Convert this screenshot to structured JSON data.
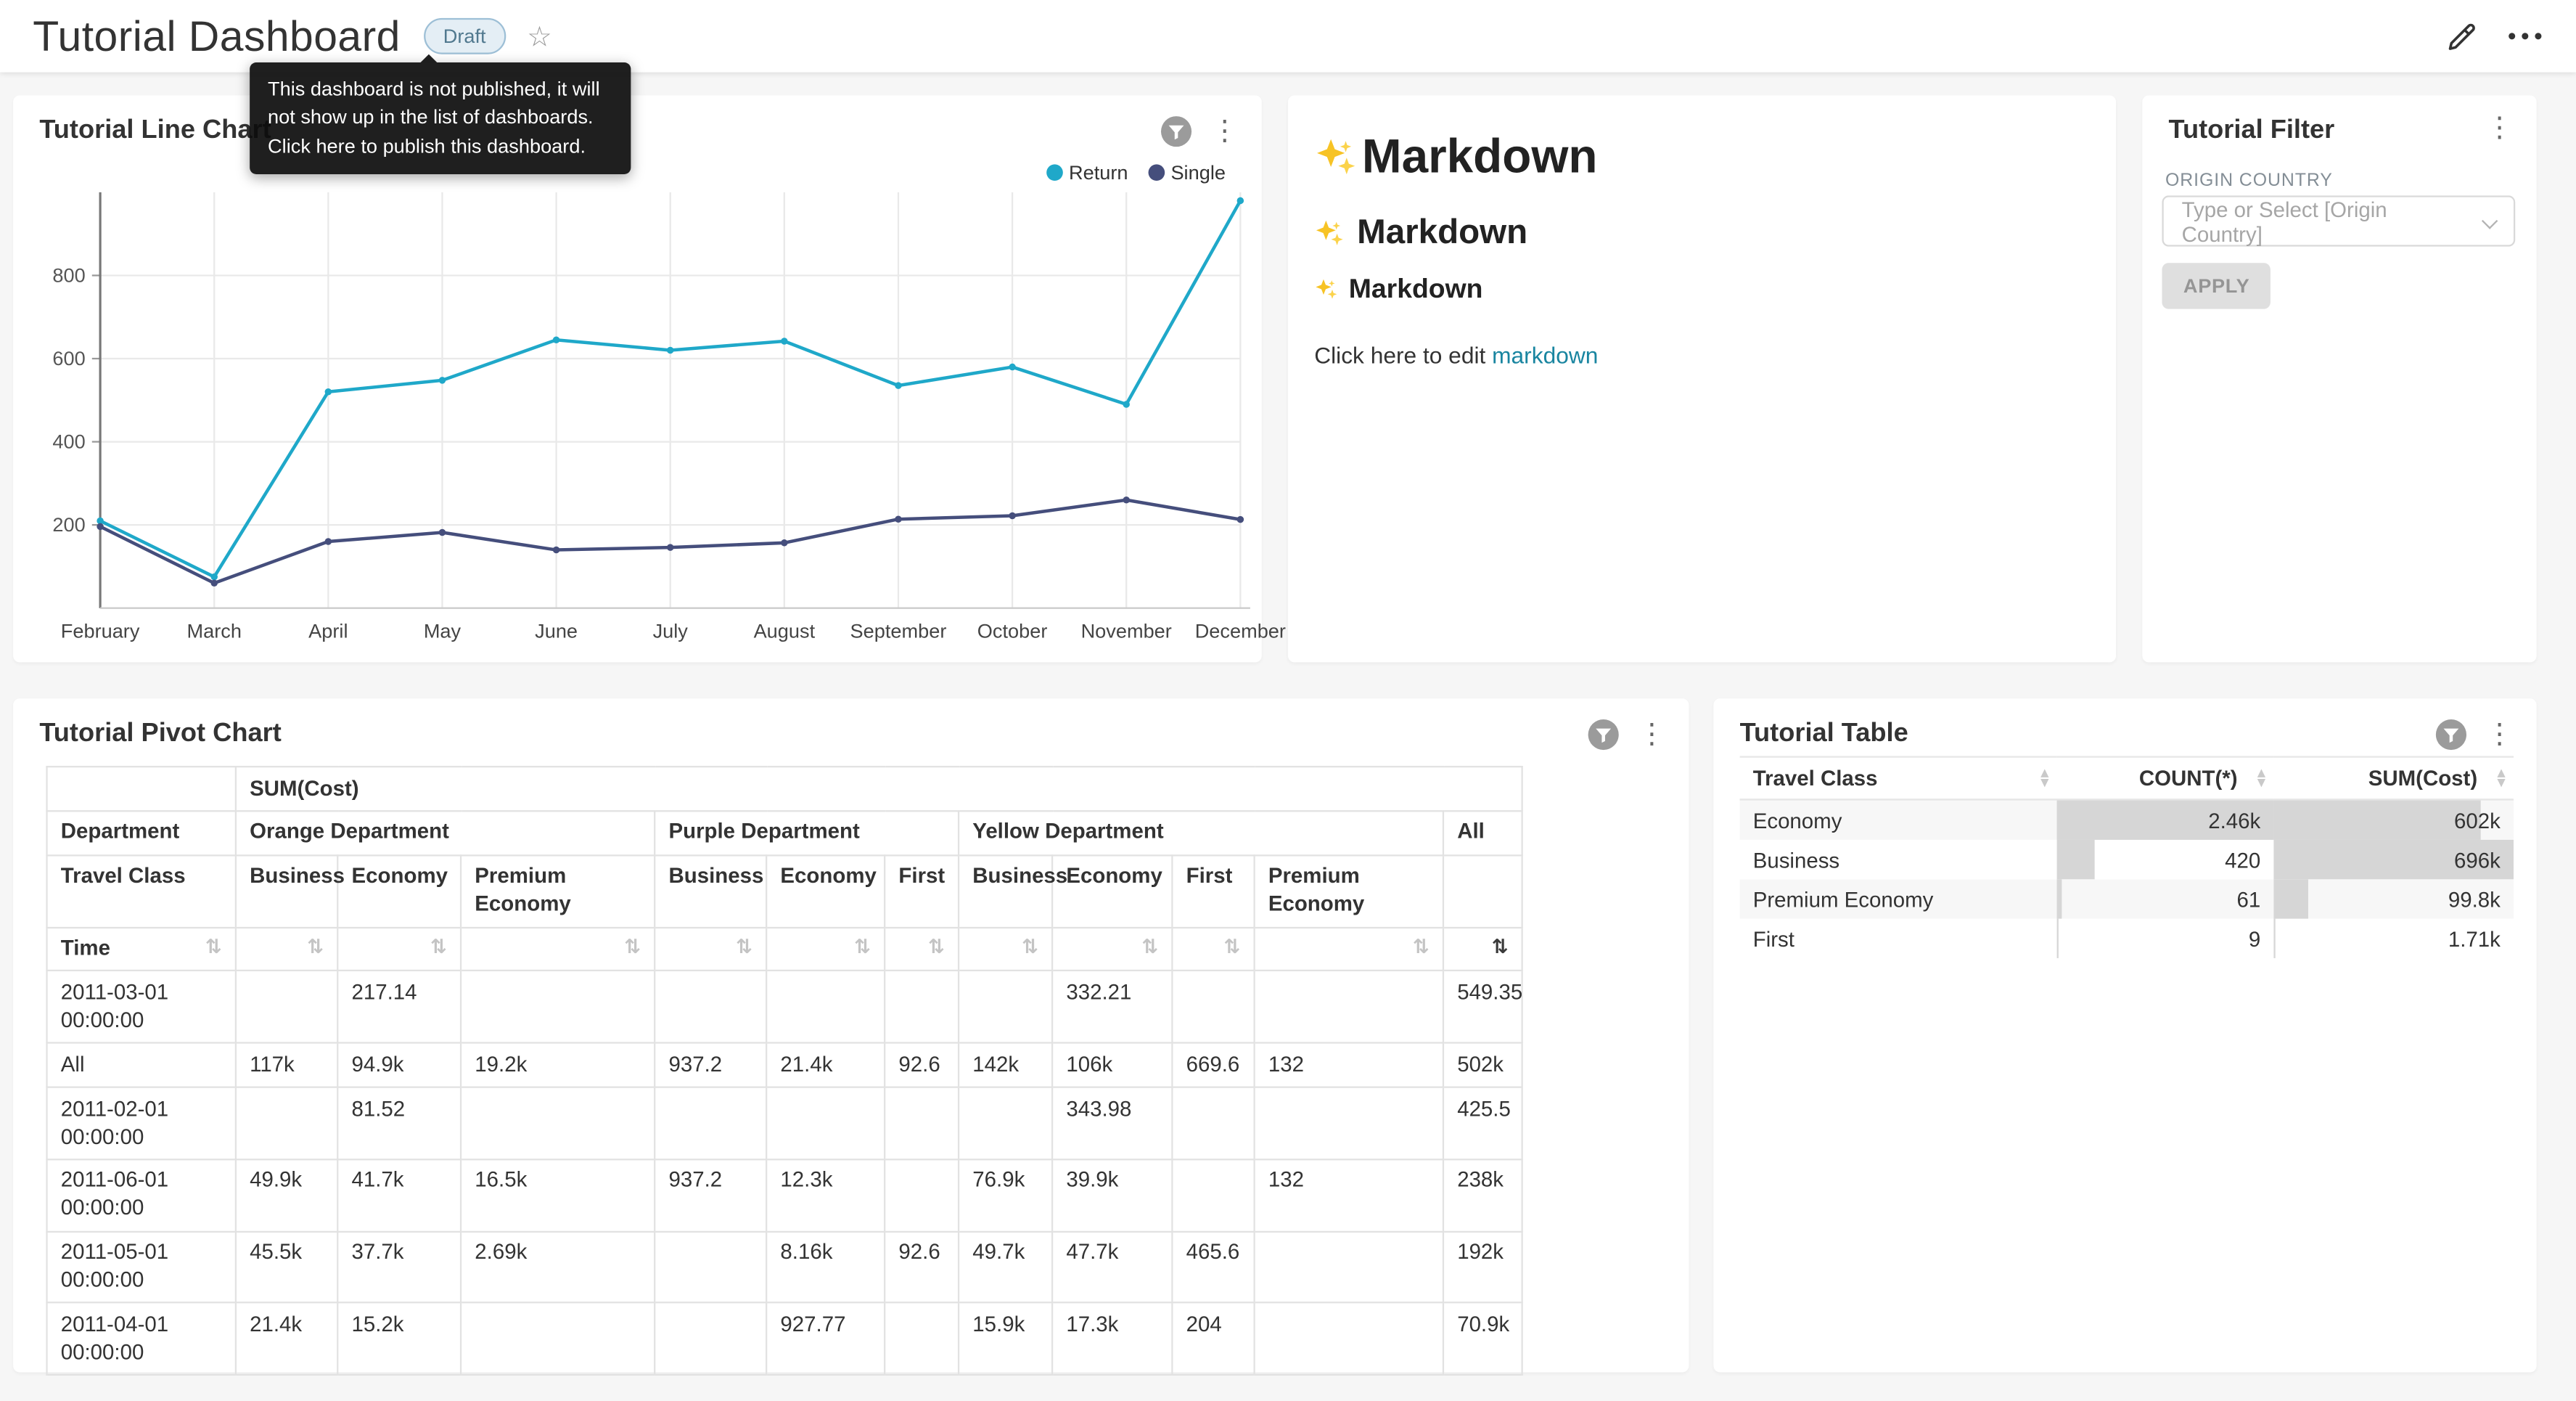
{
  "header": {
    "title": "Tutorial Dashboard",
    "badge_label": "Draft",
    "tooltip_text": "This dashboard is not published, it will not show up in the list of dashboards. Click here to publish this dashboard."
  },
  "cards": {
    "line_chart": {
      "title": "Tutorial Line Chart"
    },
    "markdown": {
      "sparkle_emoji": "✨",
      "h1": "Markdown",
      "h2": "Markdown",
      "h3": "Markdown",
      "edit_prompt": "Click here to edit ",
      "edit_link": "markdown"
    },
    "filter": {
      "title": "Tutorial Filter",
      "field_label": "ORIGIN COUNTRY",
      "select_placeholder": "Type or Select [Origin Country]",
      "apply_label": "APPLY"
    },
    "pivot": {
      "title": "Tutorial Pivot Chart"
    },
    "table": {
      "title": "Tutorial Table"
    }
  },
  "colors": {
    "series_return": "#1fa8c9",
    "series_single": "#454e7c",
    "link": "#1985a0",
    "table_bar": "#d6d6d6"
  },
  "chart_data": [
    {
      "id": "tutorial-line-chart",
      "type": "line",
      "title": "Tutorial Line Chart",
      "x": [
        "February",
        "March",
        "April",
        "May",
        "June",
        "July",
        "August",
        "September",
        "October",
        "November",
        "December"
      ],
      "yticks": [
        200,
        400,
        600,
        800
      ],
      "ylim": [
        0,
        1000
      ],
      "grid": true,
      "legend_position": "top-right",
      "series": [
        {
          "name": "Return",
          "color": "#1fa8c9",
          "values": [
            210,
            75,
            520,
            548,
            645,
            620,
            642,
            535,
            580,
            490,
            980
          ]
        },
        {
          "name": "Single",
          "color": "#454e7c",
          "values": [
            196,
            60,
            160,
            182,
            140,
            146,
            157,
            214,
            222,
            260,
            213
          ]
        }
      ]
    },
    {
      "id": "tutorial-pivot-chart",
      "type": "table",
      "title": "Tutorial Pivot Chart",
      "metric_header": "SUM(Cost)",
      "col_dimension": "Department",
      "sub_dimension": "Travel Class",
      "row_dimension": "Time",
      "sorted_by": "All",
      "groups": [
        {
          "name": "Orange Department",
          "cols": [
            "Business",
            "Economy",
            "Premium Economy"
          ]
        },
        {
          "name": "Purple Department",
          "cols": [
            "Business",
            "Economy",
            "First"
          ]
        },
        {
          "name": "Yellow Department",
          "cols": [
            "Business",
            "Economy",
            "First",
            "Premium Economy"
          ]
        },
        {
          "name": "All",
          "cols": [
            ""
          ]
        }
      ],
      "rows": [
        {
          "label": "2011-03-01 00:00:00",
          "values": [
            "",
            "217.14",
            "",
            "",
            "",
            "",
            "",
            "332.21",
            "",
            "",
            "549.35"
          ]
        },
        {
          "label": "All",
          "values": [
            "117k",
            "94.9k",
            "19.2k",
            "937.2",
            "21.4k",
            "92.6",
            "142k",
            "106k",
            "669.6",
            "132",
            "502k"
          ]
        },
        {
          "label": "2011-02-01 00:00:00",
          "values": [
            "",
            "81.52",
            "",
            "",
            "",
            "",
            "",
            "343.98",
            "",
            "",
            "425.5"
          ]
        },
        {
          "label": "2011-06-01 00:00:00",
          "values": [
            "49.9k",
            "41.7k",
            "16.5k",
            "937.2",
            "12.3k",
            "",
            "76.9k",
            "39.9k",
            "",
            "132",
            "238k"
          ]
        },
        {
          "label": "2011-05-01 00:00:00",
          "values": [
            "45.5k",
            "37.7k",
            "2.69k",
            "",
            "8.16k",
            "92.6",
            "49.7k",
            "47.7k",
            "465.6",
            "",
            "192k"
          ]
        },
        {
          "label": "2011-04-01 00:00:00",
          "values": [
            "21.4k",
            "15.2k",
            "",
            "",
            "927.77",
            "",
            "15.9k",
            "17.3k",
            "204",
            "",
            "70.9k"
          ]
        }
      ]
    },
    {
      "id": "tutorial-table",
      "type": "table",
      "title": "Tutorial Table",
      "columns": [
        "Travel Class",
        "COUNT(*)",
        "SUM(Cost)"
      ],
      "rows": [
        {
          "travel_class": "Economy",
          "count": "2.46k",
          "count_pct": 100,
          "sum": "602k",
          "sum_pct": 86.5
        },
        {
          "travel_class": "Business",
          "count": "420",
          "count_pct": 17,
          "sum": "696k",
          "sum_pct": 100
        },
        {
          "travel_class": "Premium Economy",
          "count": "61",
          "count_pct": 2.5,
          "sum": "99.8k",
          "sum_pct": 14.3
        },
        {
          "travel_class": "First",
          "count": "9",
          "count_pct": 0.4,
          "sum": "1.71k",
          "sum_pct": 0.3
        }
      ]
    }
  ]
}
